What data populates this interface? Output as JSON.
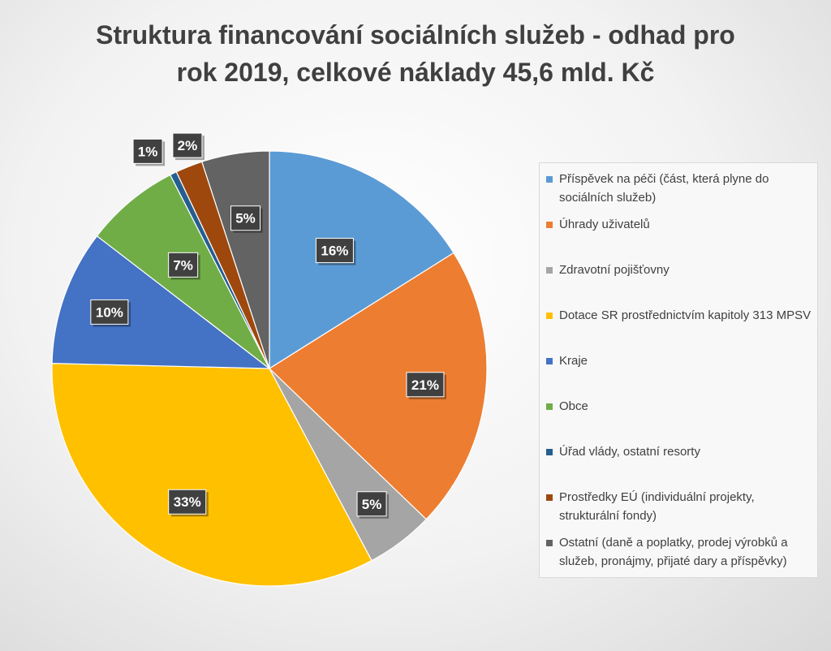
{
  "chart_data": {
    "type": "pie",
    "title_line1": "Struktura financování sociálních služeb - odhad pro",
    "title_line2": "rok 2019, celkové náklady 45,6 mld. Kč",
    "slices": [
      {
        "name": "Příspěvek na péči (část, která plyne do sociálních služeb)",
        "value": 16,
        "label": "16%",
        "color": "#5B9BD5"
      },
      {
        "name": "Úhrady uživatelů",
        "value": 21,
        "label": "21%",
        "color": "#ED7D31"
      },
      {
        "name": "Zdravotní pojišťovny",
        "value": 5,
        "label": "5%",
        "color": "#A5A5A5"
      },
      {
        "name": "Dotace SR prostřednictvím kapitoly 313 MPSV",
        "value": 33,
        "label": "33%",
        "color": "#FFC000"
      },
      {
        "name": "Kraje",
        "value": 10,
        "label": "10%",
        "color": "#4472C4"
      },
      {
        "name": "Obce",
        "value": 7,
        "label": "7%",
        "color": "#70AD47"
      },
      {
        "name": "Úřad vlády, ostatní resorty",
        "value": 0.5,
        "label": "1%",
        "color": "#255E91"
      },
      {
        "name": "Prostředky EÚ (individuální projekty, strukturální fondy)",
        "value": 2,
        "label": "2%",
        "color": "#9E480E"
      },
      {
        "name": "Ostatní (daně a poplatky, prodej výrobků a služeb, pronájmy, přijaté dary a příspěvky)",
        "value": 5,
        "label": "5%",
        "color": "#636363"
      }
    ],
    "legend_position": "right",
    "label_style": "dark boxes with white bold text"
  }
}
